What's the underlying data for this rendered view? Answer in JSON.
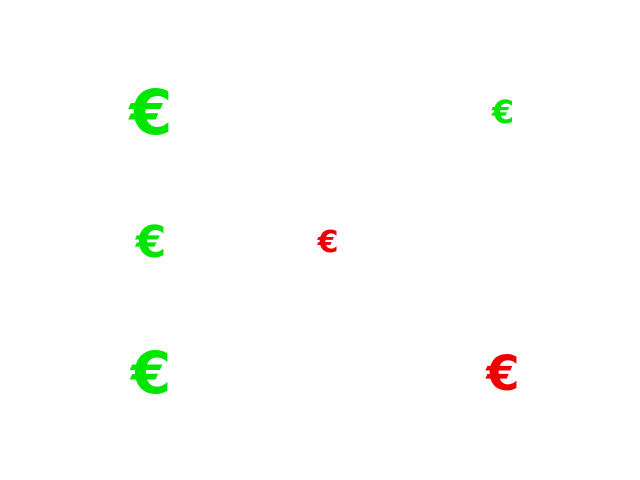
{
  "symbols": [
    {
      "glyph": "€",
      "color": "#00e600",
      "icon": "euro-icon"
    },
    {
      "glyph": "€",
      "color": "#00e600",
      "icon": "euro-icon"
    },
    {
      "glyph": "€",
      "color": "#00e600",
      "icon": "euro-icon"
    },
    {
      "glyph": "€",
      "color": "#ee0000",
      "icon": "euro-icon"
    },
    {
      "glyph": "€",
      "color": "#00e600",
      "icon": "euro-icon"
    },
    {
      "glyph": "€",
      "color": "#ee0000",
      "icon": "euro-icon"
    }
  ]
}
